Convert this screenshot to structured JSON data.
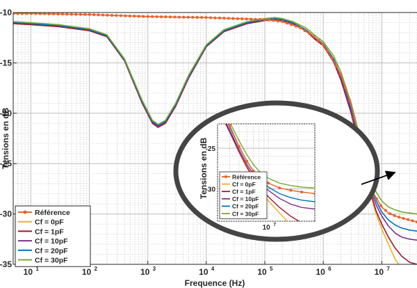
{
  "chart_data": {
    "type": "line",
    "xlabel": "Frequence (Hz)",
    "ylabel": "Tensions en dB",
    "xscale": "log",
    "xlim": [
      5,
      40000000
    ],
    "ylim": [
      -35,
      -10
    ],
    "grid": "on",
    "legend_location": "bottom-left",
    "xtick_labels": [
      "10",
      "10",
      "10",
      "10",
      "10",
      "10",
      "10"
    ],
    "xtick_exponents": [
      "1",
      "2",
      "3",
      "4",
      "5",
      "6",
      "7"
    ],
    "ytick_labels": [
      "-10",
      "-15",
      "-20",
      "-25",
      "-30",
      "-35"
    ],
    "series": [
      {
        "name": "Référence",
        "color": "#e8622a",
        "marker": "circle",
        "x": [
          5,
          10,
          30,
          100,
          300,
          1000,
          3000,
          10000,
          30000,
          100000,
          200000,
          400000,
          700000,
          1000000,
          1500000,
          2000000,
          3000000,
          4000000,
          5000000,
          6000000,
          7000000,
          8000000,
          10000000,
          13000000,
          17000000,
          22000000,
          30000000,
          40000000
        ],
        "y": [
          -10.1,
          -10.1,
          -10.15,
          -10.2,
          -10.3,
          -10.4,
          -10.45,
          -10.5,
          -10.6,
          -10.7,
          -10.9,
          -11.5,
          -12.4,
          -13.2,
          -14.8,
          -16.2,
          -19.2,
          -22.2,
          -24.8,
          -26.6,
          -27.8,
          -28.4,
          -29.3,
          -29.9,
          -30.2,
          -30.4,
          -30.6,
          -30.8
        ]
      },
      {
        "name": "Cf = 0pF",
        "color": "#edb120",
        "x": [
          5,
          10,
          30,
          100,
          200,
          400,
          800,
          1200,
          1500,
          2000,
          3000,
          5000,
          10000,
          20000,
          50000,
          100000,
          150000,
          200000,
          300000,
          500000,
          700000,
          1000000,
          1500000,
          2000000,
          3000000,
          4000000,
          5000000,
          6000000,
          7000000,
          8000000,
          10000000,
          13000000,
          17000000,
          22000000,
          30000000,
          40000000
        ],
        "y": [
          -11.1,
          -11.2,
          -11.4,
          -11.8,
          -12.4,
          -14.8,
          -19.0,
          -21.0,
          -21.4,
          -21.0,
          -19.3,
          -16.5,
          -13.4,
          -11.9,
          -11.1,
          -10.8,
          -10.7,
          -10.8,
          -11.1,
          -11.8,
          -12.6,
          -13.3,
          -14.9,
          -16.7,
          -20.0,
          -23.0,
          -25.5,
          -27.4,
          -28.8,
          -30.0,
          -31.5,
          -33.0,
          -34.5,
          -35.5,
          -36.0,
          -36.5
        ]
      },
      {
        "name": "Cf = 1pF",
        "color": "#a2142f",
        "x": [
          5,
          10,
          30,
          100,
          200,
          400,
          800,
          1200,
          1500,
          2000,
          3000,
          5000,
          10000,
          20000,
          50000,
          100000,
          150000,
          200000,
          300000,
          500000,
          700000,
          1000000,
          1500000,
          2000000,
          3000000,
          4000000,
          5000000,
          6000000,
          7000000,
          8000000,
          10000000,
          13000000,
          17000000,
          22000000,
          30000000,
          40000000
        ],
        "y": [
          -11.1,
          -11.2,
          -11.4,
          -11.8,
          -12.4,
          -14.8,
          -19.0,
          -21.0,
          -21.4,
          -21.0,
          -19.3,
          -16.5,
          -13.4,
          -11.9,
          -11.1,
          -10.8,
          -10.7,
          -10.8,
          -11.1,
          -11.8,
          -12.6,
          -13.3,
          -14.9,
          -16.7,
          -20.0,
          -23.0,
          -25.5,
          -27.3,
          -28.6,
          -29.7,
          -31.0,
          -32.3,
          -33.4,
          -34.2,
          -34.8,
          -35.0
        ]
      },
      {
        "name": "Cf = 10pF",
        "color": "#7e2f8e",
        "x": [
          5,
          10,
          30,
          100,
          200,
          400,
          800,
          1200,
          1500,
          2000,
          3000,
          5000,
          10000,
          20000,
          50000,
          100000,
          150000,
          200000,
          300000,
          500000,
          700000,
          1000000,
          1500000,
          2000000,
          3000000,
          4000000,
          5000000,
          6000000,
          7000000,
          8000000,
          10000000,
          13000000,
          17000000,
          22000000,
          30000000,
          40000000
        ],
        "y": [
          -11.0,
          -11.1,
          -11.3,
          -11.7,
          -12.3,
          -14.7,
          -18.9,
          -20.9,
          -21.3,
          -20.9,
          -19.2,
          -16.4,
          -13.3,
          -11.8,
          -11.0,
          -10.75,
          -10.65,
          -10.75,
          -11.05,
          -11.75,
          -12.5,
          -13.2,
          -14.8,
          -16.5,
          -19.8,
          -22.8,
          -25.2,
          -27.0,
          -28.2,
          -29.1,
          -30.2,
          -31.2,
          -31.9,
          -32.3,
          -32.5,
          -32.6
        ]
      },
      {
        "name": "Cf = 20pF",
        "color": "#0072bd",
        "x": [
          5,
          10,
          30,
          100,
          200,
          400,
          800,
          1200,
          1500,
          2000,
          3000,
          5000,
          10000,
          20000,
          50000,
          100000,
          150000,
          200000,
          300000,
          500000,
          700000,
          1000000,
          1500000,
          2000000,
          3000000,
          4000000,
          5000000,
          6000000,
          7000000,
          8000000,
          10000000,
          13000000,
          17000000,
          22000000,
          30000000,
          40000000
        ],
        "y": [
          -11.0,
          -11.1,
          -11.3,
          -11.7,
          -12.3,
          -14.7,
          -18.8,
          -20.8,
          -21.2,
          -20.8,
          -19.1,
          -16.3,
          -13.3,
          -11.8,
          -11.0,
          -10.7,
          -10.6,
          -10.7,
          -11.0,
          -11.7,
          -12.4,
          -13.1,
          -14.6,
          -16.3,
          -19.5,
          -22.4,
          -24.8,
          -26.6,
          -27.8,
          -28.7,
          -29.8,
          -30.6,
          -31.1,
          -31.4,
          -31.6,
          -31.7
        ]
      },
      {
        "name": "Cf = 30pF",
        "color": "#77ac30",
        "x": [
          5,
          10,
          30,
          100,
          200,
          400,
          800,
          1200,
          1500,
          2000,
          3000,
          5000,
          10000,
          20000,
          50000,
          100000,
          150000,
          200000,
          300000,
          500000,
          700000,
          1000000,
          1500000,
          2000000,
          3000000,
          4000000,
          5000000,
          6000000,
          7000000,
          8000000,
          10000000,
          13000000,
          17000000,
          22000000,
          30000000,
          40000000
        ],
        "y": [
          -10.9,
          -11.0,
          -11.2,
          -11.6,
          -12.2,
          -14.6,
          -18.7,
          -20.7,
          -21.1,
          -20.7,
          -19.0,
          -16.2,
          -13.2,
          -11.7,
          -10.9,
          -10.6,
          -10.5,
          -10.6,
          -10.9,
          -11.5,
          -12.2,
          -12.9,
          -14.3,
          -15.9,
          -19.0,
          -21.8,
          -24.1,
          -25.8,
          -27.0,
          -27.8,
          -28.7,
          -29.3,
          -29.6,
          -29.8,
          -29.9,
          -30.0
        ]
      }
    ],
    "inset": {
      "ylabel": "Tensions en dB",
      "ylim": [
        -34,
        -22
      ],
      "xlim": [
        3000000,
        30000000
      ],
      "ytick_labels": [
        "-25",
        "-30"
      ],
      "xtick_labels": [
        "10"
      ],
      "xtick_exponents": [
        "7"
      ]
    }
  }
}
